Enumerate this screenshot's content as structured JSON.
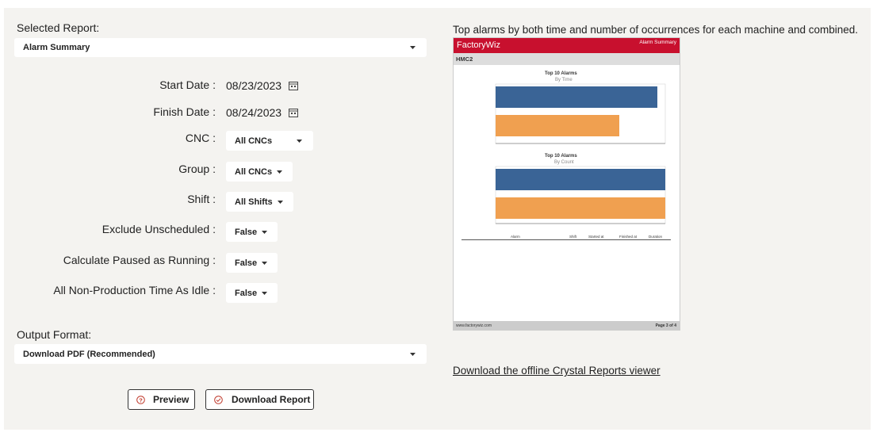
{
  "form": {
    "report_label": "Selected Report:",
    "report_value": "Alarm Summary",
    "fields": [
      {
        "label": "Start Date :",
        "value": "08/23/2023"
      },
      {
        "label": "Finish Date :",
        "value": "08/24/2023"
      },
      {
        "label": "CNC :",
        "value": "All CNCs"
      },
      {
        "label": "Group :",
        "value": "All CNCs"
      },
      {
        "label": "Shift :",
        "value": "All Shifts"
      },
      {
        "label": "Exclude Unscheduled :",
        "value": "False"
      },
      {
        "label": "Calculate Paused as Running :",
        "value": "False"
      },
      {
        "label": "All Non-Production Time As Idle :",
        "value": "False"
      }
    ],
    "output_label": "Output Format:",
    "output_value": "Download PDF (Recommended)",
    "buttons": [
      "Preview",
      "Download Report"
    ]
  },
  "preview": {
    "description": "Top alarms by both time and number of occurrences for each machine and combined.",
    "brand": "FactoryWiz",
    "report_title": "Alarm Summary",
    "machine": "HMC2",
    "chart1_title": "Top 10 Alarms",
    "chart1_subtitle": "By Time",
    "chart2_title": "Top 10 Alarms",
    "chart2_subtitle": "By Count",
    "table_headers": [
      "Alarm",
      "Shift",
      "Started at",
      "Finished at",
      "Duration"
    ],
    "footer_left": "www.factorywiz.com",
    "footer_right": "Page 3 of 4",
    "link": "Download the offline Crystal Reports viewer"
  }
}
